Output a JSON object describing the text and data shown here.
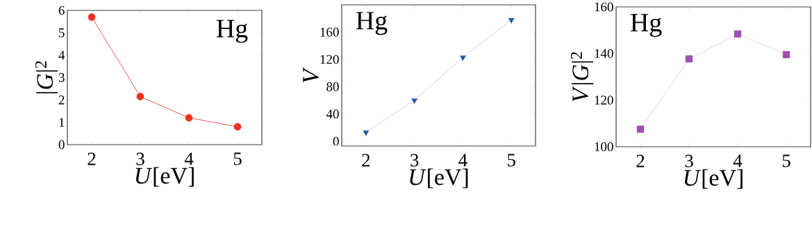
{
  "chart_data": [
    {
      "type": "line",
      "x": [
        2,
        3,
        4,
        5
      ],
      "xlabel": "*U*[eV]",
      "ylabel": "|*G*|$^{2}$",
      "annotations": [
        "Hg"
      ],
      "xlim": [
        1.5,
        5.5
      ],
      "xticks": [
        2,
        3,
        4,
        5
      ],
      "ylim": [
        0,
        6
      ],
      "yticks": [
        0,
        1,
        2,
        3,
        4,
        5,
        6
      ],
      "marker": "circle",
      "line_style": "solid",
      "series": [
        {
          "color": "#f03020",
          "values": [
            5.7,
            2.15,
            1.2,
            0.8
          ]
        }
      ]
    },
    {
      "type": "line",
      "x": [
        2,
        3,
        4,
        5
      ],
      "xlabel": "*U*[eV]",
      "ylabel": "*V*",
      "annotations": [
        "Hg"
      ],
      "xlim": [
        1.5,
        5.5
      ],
      "xticks": [
        2,
        3,
        4,
        5
      ],
      "ylim": [
        -7,
        200
      ],
      "yticks": [
        0,
        40,
        80,
        120,
        160
      ],
      "marker": "triangle",
      "line_style": "dotted",
      "series": [
        {
          "color": "#2255aa",
          "values": [
            13,
            60,
            123,
            178
          ]
        }
      ]
    },
    {
      "type": "line",
      "x": [
        2,
        3,
        4,
        5
      ],
      "xlabel": "*U*[eV]",
      "ylabel": "*V*|*G*|$^{2}$",
      "annotations": [
        "Hg"
      ],
      "xlim": [
        1.5,
        5.5
      ],
      "xticks": [
        2,
        3,
        4,
        5
      ],
      "ylim": [
        100,
        160
      ],
      "yticks": [
        100,
        120,
        140,
        160
      ],
      "marker": "square",
      "line_style": "dotted",
      "series": [
        {
          "color": "#a050b0",
          "values": [
            107.5,
            137.7,
            148.4,
            139.5
          ]
        }
      ]
    }
  ]
}
